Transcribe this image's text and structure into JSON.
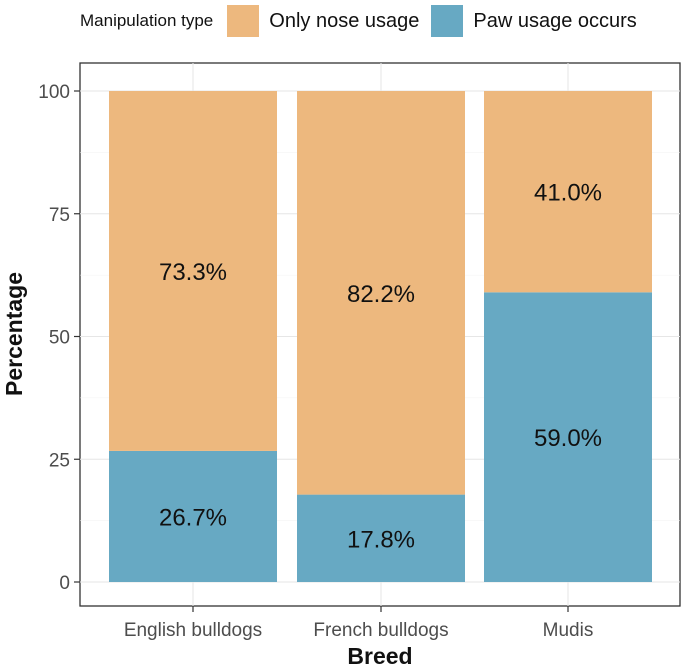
{
  "chart_data": {
    "type": "bar",
    "stacked": true,
    "categories": [
      "English bulldogs",
      "French bulldogs",
      "Mudis"
    ],
    "series": [
      {
        "name": "Paw usage occurs",
        "values": [
          26.7,
          17.8,
          59.0
        ],
        "labels": [
          "26.7%",
          "17.8%",
          "59.0%"
        ],
        "color": "#67a9c3"
      },
      {
        "name": "Only nose usage",
        "values": [
          73.3,
          82.2,
          41.0
        ],
        "labels": [
          "73.3%",
          "82.2%",
          "41.0%"
        ],
        "color": "#edb87e"
      }
    ],
    "xlabel": "Breed",
    "ylabel": "Percentage",
    "ylim": [
      0,
      100
    ],
    "yticks": [
      "0",
      "25",
      "50",
      "75",
      "100"
    ],
    "grid": true,
    "legend": {
      "title": "Manipulation type",
      "position": "top",
      "items": [
        {
          "label": "Only nose usage",
          "color": "#edb87e"
        },
        {
          "label": "Paw usage occurs",
          "color": "#67a9c3"
        }
      ]
    }
  }
}
